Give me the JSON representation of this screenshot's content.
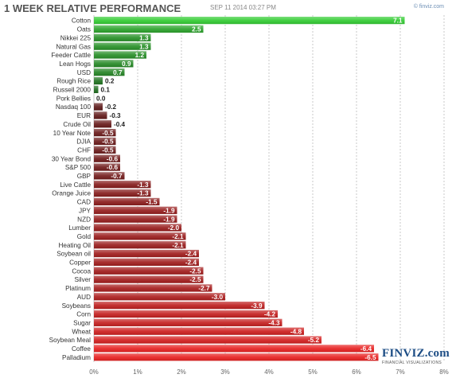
{
  "header": {
    "title": "1 WEEK RELATIVE PERFORMANCE",
    "date": "SEP 11 2014 03:27 PM",
    "source": "© finviz.com"
  },
  "logo": {
    "main": "FINVIZ.com",
    "sub": "FINANCIAL VISUALIZATIONS"
  },
  "colors": {
    "positive_strong": "#33cc33",
    "positive_dark": "#1e5e1e",
    "negative_dark": "#4a1a1a",
    "negative_strong": "#e82020",
    "grid": "#c8c8c8",
    "label_text": "#333333"
  },
  "chart_data": {
    "type": "bar",
    "orientation": "horizontal",
    "title": "1 WEEK RELATIVE PERFORMANCE",
    "categories": [
      "Cotton",
      "Oats",
      "Nikkei 225",
      "Natural Gas",
      "Feeder Cattle",
      "Lean Hogs",
      "USD",
      "Rough Rice",
      "Russell 2000",
      "Pork Bellies",
      "Nasdaq 100",
      "EUR",
      "Crude Oil",
      "10 Year Note",
      "DJIA",
      "CHF",
      "30 Year Bond",
      "S&P 500",
      "GBP",
      "Live Cattle",
      "Orange Juice",
      "CAD",
      "JPY",
      "NZD",
      "Lumber",
      "Gold",
      "Heating Oil",
      "Soybean oil",
      "Copper",
      "Cocoa",
      "Silver",
      "Platinum",
      "AUD",
      "Soybeans",
      "Corn",
      "Sugar",
      "Wheat",
      "Soybean Meal",
      "Coffee",
      "Palladium"
    ],
    "values": [
      7.1,
      2.5,
      1.3,
      1.3,
      1.2,
      0.9,
      0.7,
      0.2,
      0.1,
      0.0,
      -0.2,
      -0.3,
      -0.4,
      -0.5,
      -0.5,
      -0.5,
      -0.6,
      -0.6,
      -0.7,
      -1.3,
      -1.3,
      -1.5,
      -1.9,
      -1.9,
      -2.0,
      -2.1,
      -2.1,
      -2.4,
      -2.4,
      -2.5,
      -2.5,
      -2.7,
      -3.0,
      -3.9,
      -4.2,
      -4.3,
      -4.8,
      -5.2,
      -6.4,
      -6.5
    ],
    "value_labels": [
      "7.1",
      "2.5",
      "1.3",
      "1.3",
      "1.2",
      "0.9",
      "0.7",
      "0.2",
      "0.1",
      "0.0",
      "-0.2",
      "-0.3",
      "-0.4",
      "-0.5",
      "-0.5",
      "-0.5",
      "-0.6",
      "-0.6",
      "-0.7",
      "-1.3",
      "-1.3",
      "-1.5",
      "-1.9",
      "-1.9",
      "-2.0",
      "-2.1",
      "-2.1",
      "-2.4",
      "-2.4",
      "-2.5",
      "-2.5",
      "-2.7",
      "-3.0",
      "-3.9",
      "-4.2",
      "-4.3",
      "-4.8",
      "-5.2",
      "-6.4",
      "-6.5"
    ],
    "xticks": [
      "0%",
      "1%",
      "2%",
      "3%",
      "4%",
      "5%",
      "6%",
      "7%",
      "8%"
    ],
    "xlim": [
      0,
      8
    ],
    "bar_length": "absolute value",
    "grid": true
  }
}
